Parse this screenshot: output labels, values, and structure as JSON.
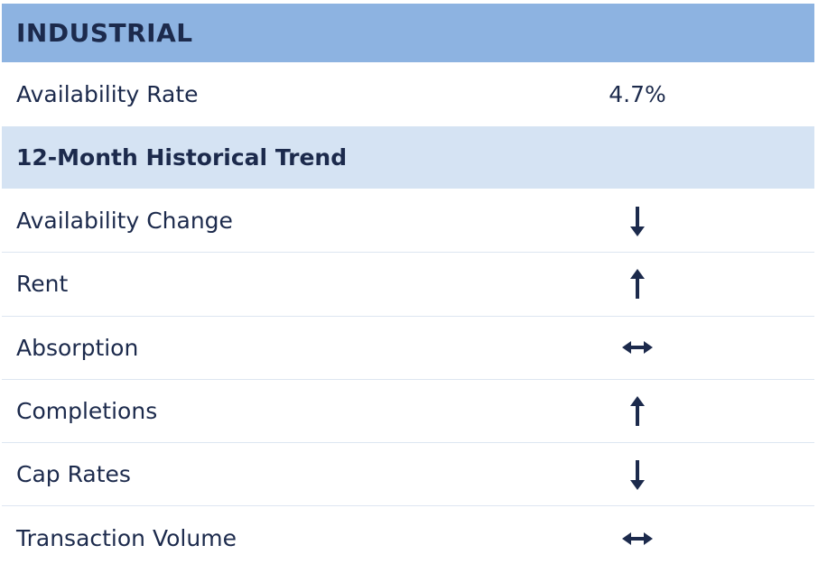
{
  "header": {
    "title": "INDUSTRIAL"
  },
  "availability": {
    "label": "Availability Rate",
    "value": "4.7%"
  },
  "trend_section": {
    "title": "12-Month Historical Trend"
  },
  "trends": [
    {
      "label": "Availability Change",
      "direction": "down",
      "icon": "arrow-down-icon"
    },
    {
      "label": "Rent",
      "direction": "up",
      "icon": "arrow-up-icon"
    },
    {
      "label": "Absorption",
      "direction": "flat",
      "icon": "arrow-left-right-icon"
    },
    {
      "label": "Completions",
      "direction": "up",
      "icon": "arrow-up-icon"
    },
    {
      "label": "Cap Rates",
      "direction": "down",
      "icon": "arrow-down-icon"
    },
    {
      "label": "Transaction Volume",
      "direction": "flat",
      "icon": "arrow-left-right-icon"
    }
  ],
  "colors": {
    "header_bg": "#8db3e1",
    "subheader_bg": "#d5e3f3",
    "text": "#1c2a4c"
  }
}
